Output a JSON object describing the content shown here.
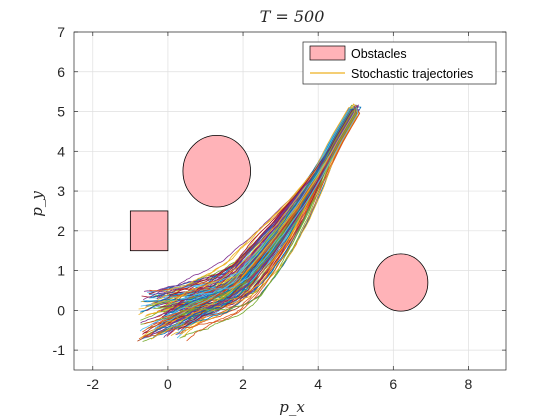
{
  "chart_data": {
    "type": "line",
    "title": "T = 500",
    "xlabel": "p_x",
    "ylabel": "p_y",
    "xlim": [
      -2.5,
      9
    ],
    "ylim": [
      -1.5,
      7
    ],
    "xticks": [
      -2,
      0,
      2,
      4,
      6,
      8
    ],
    "xtick_labels": [
      "-2",
      "0",
      "2",
      "4",
      "6",
      "8"
    ],
    "yticks": [
      -1,
      0,
      1,
      2,
      3,
      4,
      5,
      6,
      7
    ],
    "ytick_labels": [
      "-1",
      "0",
      "1",
      "2",
      "3",
      "4",
      "5",
      "6",
      "7"
    ],
    "grid": true,
    "legend": {
      "location": "top-right",
      "entries": [
        "Obstacles",
        "Stochastic trajectories"
      ]
    },
    "obstacles": [
      {
        "shape": "rectangle",
        "x_range": [
          -1,
          0
        ],
        "y_range": [
          1.5,
          2.5
        ]
      },
      {
        "shape": "ellipse",
        "center": [
          1.3,
          3.5
        ],
        "radius": [
          0.9,
          0.9
        ]
      },
      {
        "shape": "ellipse",
        "center": [
          6.2,
          0.7
        ],
        "radius": [
          0.72,
          0.72
        ]
      }
    ],
    "obstacle_color": "#ffb3b8",
    "trajectories": {
      "count_drawn": 160,
      "start_region": {
        "x": [
          -0.8,
          0.5
        ],
        "y": [
          -0.8,
          0.5
        ]
      },
      "end_point": [
        5.0,
        5.1
      ],
      "mean_path_x": [
        -0.1,
        0.5,
        1.0,
        1.5,
        2.0,
        2.5,
        3.0,
        3.5,
        4.0,
        4.5,
        5.0
      ],
      "mean_path_y": [
        -0.05,
        0.15,
        0.3,
        0.45,
        0.75,
        1.3,
        1.9,
        2.6,
        3.4,
        4.3,
        5.1
      ],
      "colors": [
        "#0072bd",
        "#d95319",
        "#edb120",
        "#7e2f8e",
        "#77ac30",
        "#4dbeee",
        "#a2142f"
      ]
    }
  }
}
